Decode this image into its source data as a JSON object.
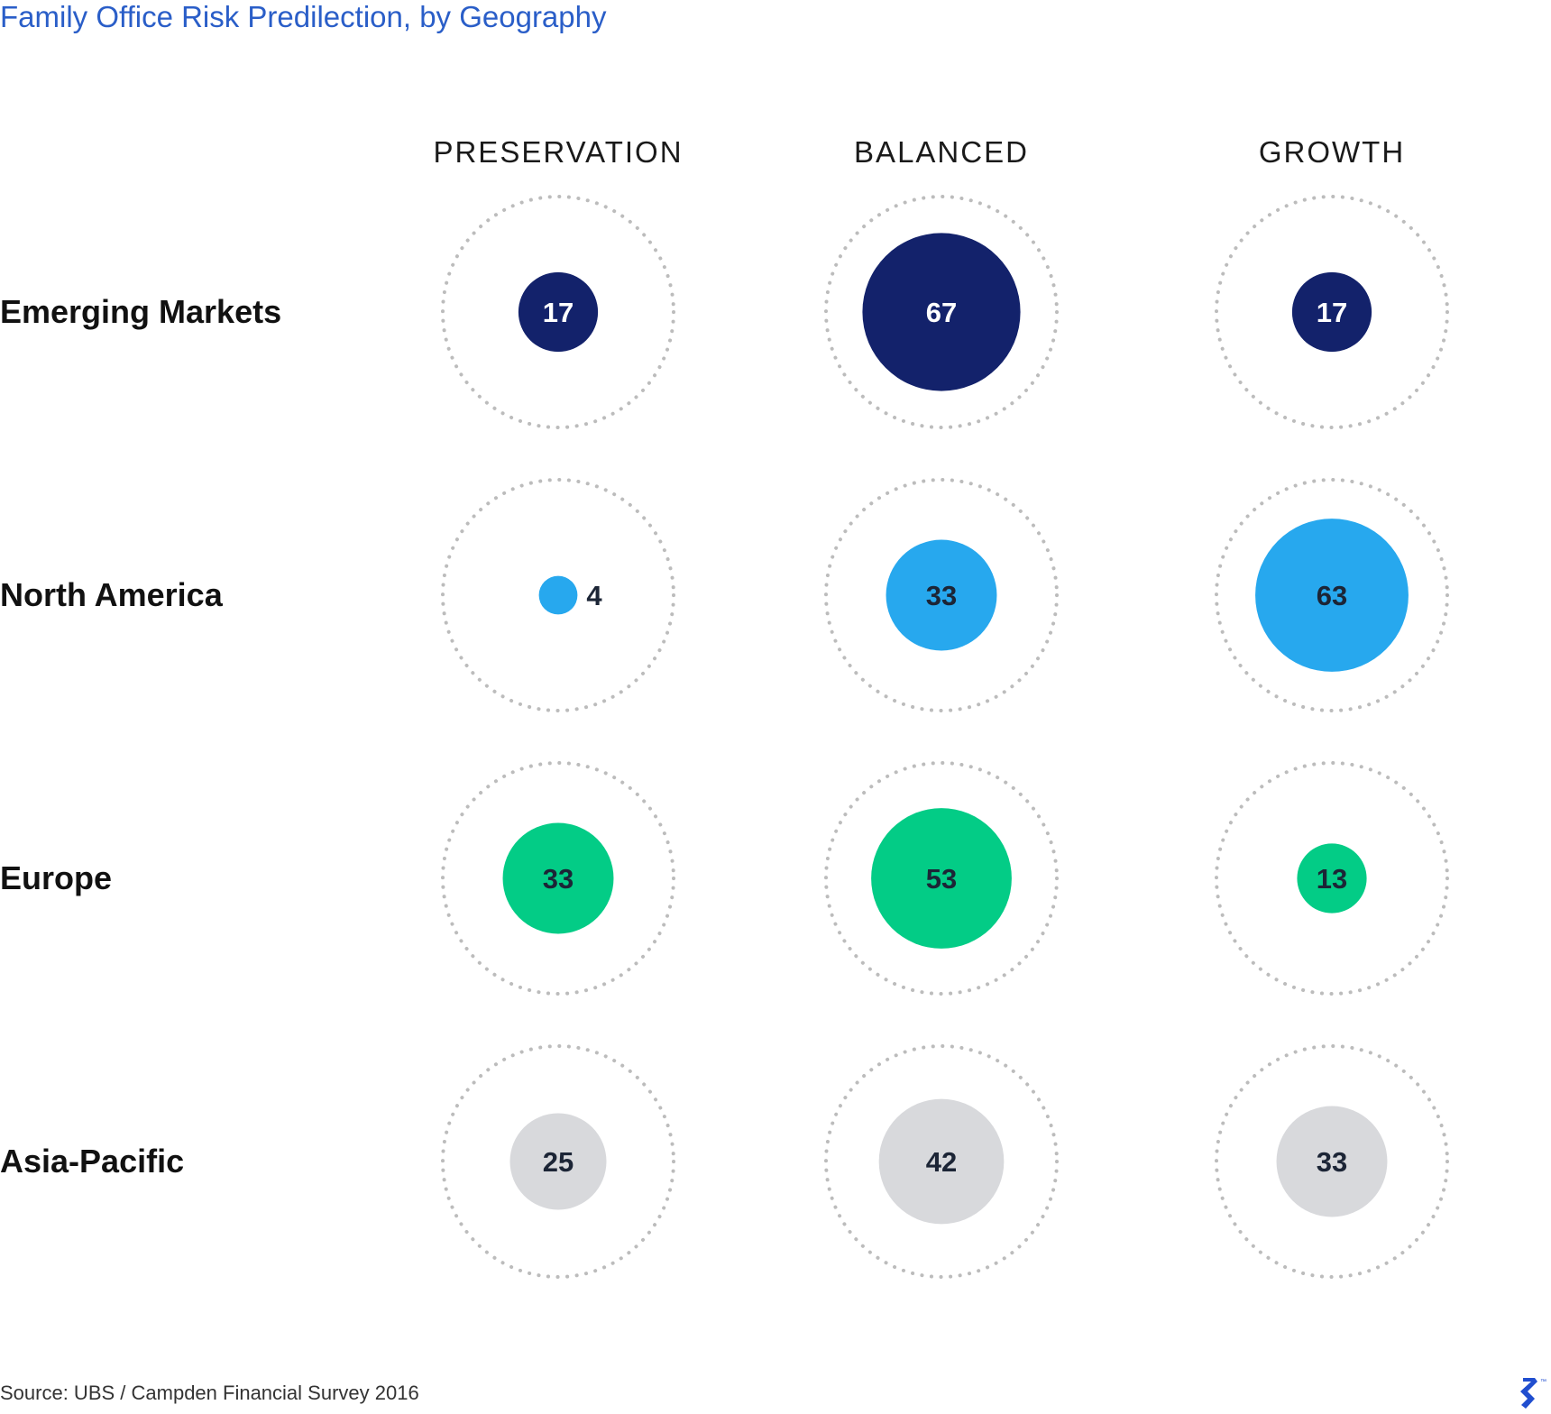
{
  "chart_data": {
    "type": "bubble-matrix",
    "title": "Family Office Risk Predilection, by Geography",
    "columns": [
      "PRESERVATION",
      "BALANCED",
      "GROWTH"
    ],
    "rows": [
      "Emerging Markets",
      "North America",
      "Europe",
      "Asia-Pacific"
    ],
    "values": [
      [
        17,
        67,
        17
      ],
      [
        4,
        33,
        63
      ],
      [
        33,
        53,
        13
      ],
      [
        25,
        42,
        33
      ]
    ],
    "row_colors": [
      "#13226b",
      "#27a8ee",
      "#03cc86",
      "#d8d9dc"
    ],
    "label_colors": [
      "#ffffff",
      "#1c2536",
      "#1c2536",
      "#1c2536"
    ],
    "max_value": 100
  },
  "source": "Source: UBS / Campden Financial Survey 2016",
  "brand": {
    "icon": "toptal-logo-icon",
    "mark": "™",
    "color": "#204ecf"
  }
}
